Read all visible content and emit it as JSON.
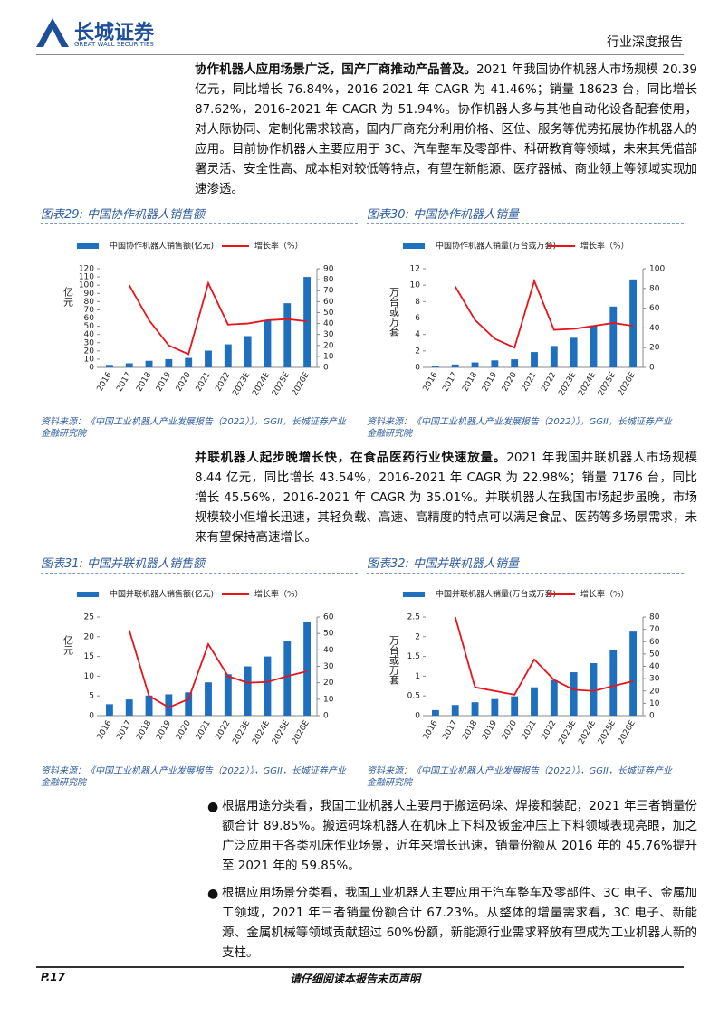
{
  "header": {
    "logo_cn": "长城证券",
    "logo_en": "GREAT WALL SECURITIES",
    "report_type": "行业深度报告"
  },
  "paragraphs": [
    {
      "lead": "协作机器人应用场景广泛，国产厂商推动产品普及。",
      "text": "2021 年我国协作机器人市场规模 20.39 亿元，同比增长 76.84%，2016-2021 年 CAGR 为 41.46%；销量 18623 台，同比增长 87.62%，2016-2021 年 CAGR 为 51.94%。协作机器人多与其他自动化设备配套使用，对人际协同、定制化需求较高，国内厂商充分利用价格、区位、服务等优势拓展协作机器人的应用。目前协作机器人主要应用于 3C、汽车整车及零部件、科研教育等领域，未来其凭借部署灵活、安全性高、成本相对较低等特点，有望在新能源、医疗器械、商业领上等领域实现加速渗透。"
    },
    {
      "lead": "并联机器人起步晚增长快，在食品医药行业快速放量。",
      "text": "2021 年我国并联机器人市场规模 8.44 亿元，同比增长 43.54%，2016-2021 年 CAGR 为 22.98%；销量 7176 台，同比增长 45.56%，2016-2021 年 CAGR 为 35.01%。并联机器人在我国市场起步虽晚，市场规模较小但增长迅速，其轻负载、高速、高精度的特点可以满足食品、医药等多场景需求，未来有望保持高速增长。"
    }
  ],
  "figures": [
    {
      "caption": "图表29:  中国协作机器人销售额",
      "source": "资料来源：《中国工业机器人产业发展报告（2022）》，GGII，长城证券产业金融研究院"
    },
    {
      "caption": "图表30:  中国协作机器人销量",
      "source": "资料来源：《中国工业机器人产业发展报告（2022）》，GGII，长城证券产业金融研究院"
    },
    {
      "caption": "图表31:  中国并联机器人销售额",
      "source": "资料来源：《中国工业机器人产业发展报告（2022）》，GGII，长城证券产业金融研究院"
    },
    {
      "caption": "图表32:  中国并联机器人销量",
      "source": "资料来源：《中国工业机器人产业发展报告（2022）》，GGII，长城证券产业金融研究院"
    }
  ],
  "chart_data": [
    {
      "type": "combo",
      "y_label": "亿元",
      "categories": [
        "2016",
        "2017",
        "2018",
        "2019",
        "2020",
        "2021",
        "2022",
        "2023E",
        "2024E",
        "2025E",
        "2026E"
      ],
      "ylim": [
        0,
        120
      ],
      "yticks": [
        0,
        10,
        20,
        30,
        40,
        50,
        60,
        70,
        80,
        90,
        100,
        110,
        120
      ],
      "y2lim": [
        0,
        90
      ],
      "y2ticks": [
        0,
        10,
        20,
        30,
        40,
        50,
        60,
        70,
        80,
        90
      ],
      "series": [
        {
          "name": "中国协作机器人销售额(亿元)",
          "color": "#1f6fbf",
          "values": [
            3,
            5,
            8,
            10,
            11.5,
            20.39,
            28,
            38,
            57,
            78,
            110
          ]
        },
        {
          "name": "增长率（%）",
          "color": "#e8141b",
          "axis": "y2",
          "values": [
            null,
            75,
            43,
            20,
            12,
            76.84,
            39,
            40,
            43,
            44,
            42
          ]
        }
      ]
    },
    {
      "type": "combo",
      "y_label": "万台或万套",
      "categories": [
        "2016",
        "2017",
        "2018",
        "2019",
        "2020",
        "2021",
        "2022",
        "2023E",
        "2024E",
        "2025E",
        "2026E"
      ],
      "ylim": [
        0,
        12
      ],
      "yticks": [
        0,
        2,
        4,
        6,
        8,
        10,
        12
      ],
      "y2lim": [
        0,
        100
      ],
      "y2ticks": [
        0,
        20,
        40,
        60,
        80,
        100
      ],
      "series": [
        {
          "name": "中国协作机器人销量(万台或万套)",
          "color": "#1f6fbf",
          "values": [
            0.2,
            0.35,
            0.6,
            0.85,
            0.98,
            1.8623,
            2.6,
            3.6,
            5.1,
            7.4,
            10.7
          ]
        },
        {
          "name": "增长率（%）",
          "color": "#e8141b",
          "axis": "y2",
          "values": [
            null,
            82,
            48,
            29,
            20,
            87.62,
            38,
            39,
            42,
            45,
            42
          ]
        }
      ]
    },
    {
      "type": "combo",
      "y_label": "亿元",
      "categories": [
        "2016",
        "2017",
        "2018",
        "2019",
        "2020",
        "2021",
        "2022",
        "2023E",
        "2024E",
        "2025E",
        "2026E"
      ],
      "ylim": [
        0,
        25
      ],
      "yticks": [
        0,
        5,
        10,
        15,
        20,
        25
      ],
      "y2lim": [
        0,
        60
      ],
      "y2ticks": [
        0,
        10,
        20,
        30,
        40,
        50,
        60
      ],
      "series": [
        {
          "name": "中国并联机器人销售额(亿元)",
          "color": "#1f6fbf",
          "values": [
            2.9,
            4.1,
            5.1,
            5.4,
            5.9,
            8.44,
            10.5,
            12.5,
            15,
            18.8,
            23.8
          ]
        },
        {
          "name": "增长率（%）",
          "color": "#e8141b",
          "axis": "y2",
          "values": [
            null,
            52,
            12,
            5,
            10,
            43.54,
            24,
            20,
            20.5,
            24,
            27
          ]
        }
      ]
    },
    {
      "type": "combo",
      "y_label": "万台或万套",
      "categories": [
        "2016",
        "2017",
        "2018",
        "2019",
        "2020",
        "2021",
        "2022",
        "2023E",
        "2024E",
        "2025E",
        "2026E"
      ],
      "ylim": [
        0,
        2.5
      ],
      "yticks": [
        0,
        0.5,
        1,
        1.5,
        2,
        2.5
      ],
      "y2lim": [
        0,
        80
      ],
      "y2ticks": [
        0,
        10,
        20,
        30,
        40,
        50,
        60,
        70,
        80
      ],
      "series": [
        {
          "name": "中国并联机器人销量(万台或万套)",
          "color": "#1f6fbf",
          "values": [
            0.14,
            0.27,
            0.34,
            0.42,
            0.49,
            0.7176,
            0.9,
            1.1,
            1.33,
            1.66,
            2.13
          ]
        },
        {
          "name": "增长率（%）",
          "color": "#e8141b",
          "axis": "y2",
          "values": [
            null,
            80,
            23,
            20,
            17,
            45.56,
            29,
            21,
            20,
            24,
            28
          ]
        }
      ]
    }
  ],
  "bullets": [
    "根据用途分类看，我国工业机器人主要用于搬运码垛、焊接和装配，2021 年三者销量份额合计 89.85%。搬运码垛机器人在机床上下料及钣金冲压上下料领域表现亮眼，加之广泛应用于各类机床作业场景，近年来增长迅速，销量份额从 2016 年的 45.76%提升至 2021 年的 59.85%。",
    "根据应用场景分类看，我国工业机器人主要应用于汽车整车及零部件、3C 电子、金属加工领域，2021 年三者销量份额合计 67.23%。从整体的增量需求看，3C 电子、新能源、金属机械等领域贡献超过 60%份额，新能源行业需求释放有望成为工业机器人新的支柱。"
  ],
  "footer": {
    "page": "P.17",
    "disclaimer": "请仔细阅读本报告末页声明"
  }
}
